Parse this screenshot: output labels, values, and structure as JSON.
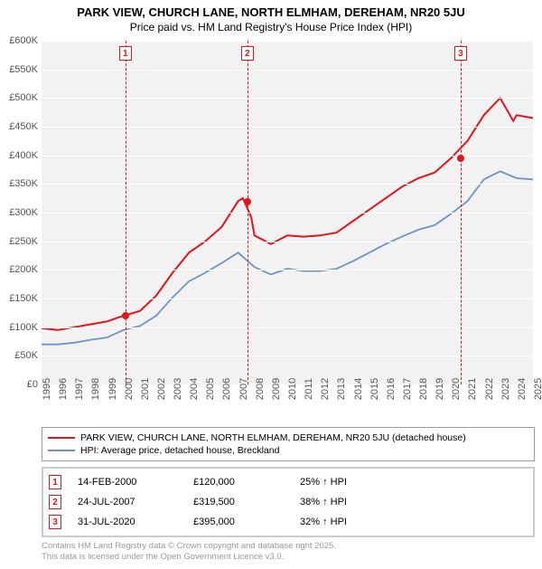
{
  "title": "PARK VIEW, CHURCH LANE, NORTH ELMHAM, DEREHAM, NR20 5JU",
  "subtitle": "Price paid vs. HM Land Registry's House Price Index (HPI)",
  "chart": {
    "type": "line",
    "background_color": "#f2f2f2",
    "grid_color": "#ffffff",
    "axis_color": "#888888",
    "label_color": "#555555",
    "label_fontsize": 11,
    "x": {
      "min": 1995,
      "max": 2025,
      "ticks": [
        1995,
        1996,
        1997,
        1998,
        1999,
        2000,
        2001,
        2002,
        2003,
        2004,
        2005,
        2006,
        2007,
        2008,
        2009,
        2010,
        2011,
        2012,
        2013,
        2014,
        2015,
        2016,
        2017,
        2018,
        2019,
        2020,
        2021,
        2022,
        2023,
        2024,
        2025
      ]
    },
    "y": {
      "min": 0,
      "max": 600000,
      "tick_step": 50000,
      "prefix": "£",
      "suffix": "K",
      "ticks": [
        0,
        50000,
        100000,
        150000,
        200000,
        250000,
        300000,
        350000,
        400000,
        450000,
        500000,
        550000,
        600000
      ]
    },
    "series": [
      {
        "name": "PARK VIEW, CHURCH LANE, NORTH ELMHAM, DEREHAM, NR20 5JU (detached house)",
        "color": "#e1151a",
        "line_width": 2,
        "points": [
          [
            1995,
            98000
          ],
          [
            1996,
            95000
          ],
          [
            1997,
            100000
          ],
          [
            1998,
            105000
          ],
          [
            1999,
            110000
          ],
          [
            2000,
            120000
          ],
          [
            2001,
            128000
          ],
          [
            2002,
            155000
          ],
          [
            2003,
            195000
          ],
          [
            2004,
            230000
          ],
          [
            2005,
            250000
          ],
          [
            2006,
            275000
          ],
          [
            2007,
            320000
          ],
          [
            2007.3,
            325000
          ],
          [
            2007.8,
            292000
          ],
          [
            2008,
            260000
          ],
          [
            2009,
            245000
          ],
          [
            2010,
            260000
          ],
          [
            2011,
            258000
          ],
          [
            2012,
            260000
          ],
          [
            2013,
            265000
          ],
          [
            2014,
            285000
          ],
          [
            2015,
            305000
          ],
          [
            2016,
            325000
          ],
          [
            2017,
            345000
          ],
          [
            2018,
            360000
          ],
          [
            2019,
            370000
          ],
          [
            2020,
            395000
          ],
          [
            2021,
            425000
          ],
          [
            2022,
            470000
          ],
          [
            2023,
            500000
          ],
          [
            2023.8,
            460000
          ],
          [
            2024,
            470000
          ],
          [
            2025,
            465000
          ]
        ]
      },
      {
        "name": "HPI: Average price, detached house, Breckland",
        "color": "#6d94c8",
        "line_width": 1.8,
        "points": [
          [
            1995,
            70000
          ],
          [
            1996,
            70000
          ],
          [
            1997,
            73000
          ],
          [
            1998,
            78000
          ],
          [
            1999,
            82000
          ],
          [
            2000,
            95000
          ],
          [
            2001,
            102000
          ],
          [
            2002,
            120000
          ],
          [
            2003,
            152000
          ],
          [
            2004,
            180000
          ],
          [
            2005,
            195000
          ],
          [
            2006,
            212000
          ],
          [
            2007,
            230000
          ],
          [
            2008,
            205000
          ],
          [
            2009,
            192000
          ],
          [
            2010,
            202000
          ],
          [
            2011,
            198000
          ],
          [
            2012,
            198000
          ],
          [
            2013,
            202000
          ],
          [
            2014,
            215000
          ],
          [
            2015,
            230000
          ],
          [
            2016,
            245000
          ],
          [
            2017,
            258000
          ],
          [
            2018,
            270000
          ],
          [
            2019,
            278000
          ],
          [
            2020,
            298000
          ],
          [
            2021,
            320000
          ],
          [
            2022,
            358000
          ],
          [
            2023,
            372000
          ],
          [
            2024,
            360000
          ],
          [
            2025,
            358000
          ]
        ]
      }
    ],
    "markers": [
      {
        "n": 1,
        "x": 2000.12,
        "value": 120000,
        "color": "#e1151a"
      },
      {
        "n": 2,
        "x": 2007.56,
        "value": 319500,
        "color": "#e1151a"
      },
      {
        "n": 3,
        "x": 2020.58,
        "value": 395000,
        "color": "#e1151a"
      }
    ]
  },
  "legend": {
    "items": [
      {
        "color": "#e1151a",
        "label": "PARK VIEW, CHURCH LANE, NORTH ELMHAM, DEREHAM, NR20 5JU (detached house)"
      },
      {
        "color": "#6d94c8",
        "label": "HPI: Average price, detached house, Breckland"
      }
    ]
  },
  "sales": [
    {
      "n": "1",
      "date": "14-FEB-2000",
      "price": "£120,000",
      "pct": "25% ↑ HPI",
      "color": "#e1151a"
    },
    {
      "n": "2",
      "date": "24-JUL-2007",
      "price": "£319,500",
      "pct": "38% ↑ HPI",
      "color": "#e1151a"
    },
    {
      "n": "3",
      "date": "31-JUL-2020",
      "price": "£395,000",
      "pct": "32% ↑ HPI",
      "color": "#e1151a"
    }
  ],
  "attribution": {
    "line1": "Contains HM Land Registry data © Crown copyright and database right 2025.",
    "line2": "This data is licensed under the Open Government Licence v3.0."
  }
}
